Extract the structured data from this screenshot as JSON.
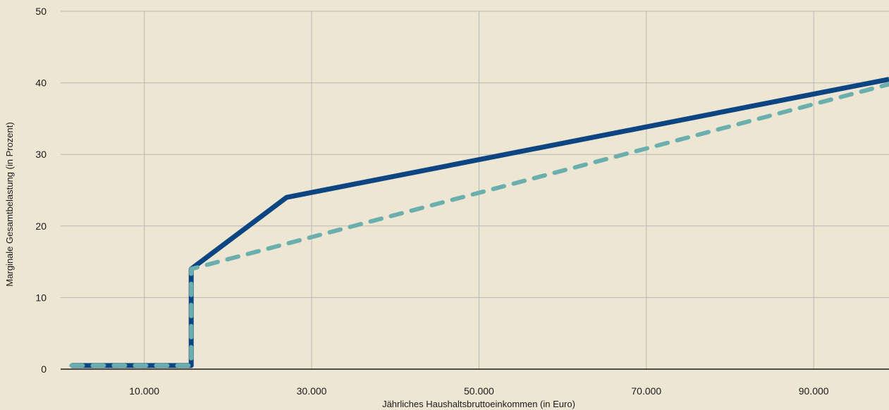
{
  "chart_data": {
    "type": "line",
    "title": "",
    "xlabel": "Jährliches Haushaltsbruttoeinkommen (in Euro)",
    "ylabel": "Marginale Gesamtbelastung (in Prozent)",
    "xlim": [
      0,
      99000
    ],
    "ylim": [
      0,
      50
    ],
    "x_ticks": [
      10000,
      30000,
      50000,
      70000,
      90000
    ],
    "x_tick_labels": [
      "10.000",
      "30.000",
      "50.000",
      "70.000",
      "90.000"
    ],
    "y_ticks": [
      0,
      10,
      20,
      30,
      40,
      50
    ],
    "y_tick_labels": [
      "0",
      "10",
      "20",
      "30",
      "40",
      "50"
    ],
    "grid": true,
    "legend": "none",
    "series": [
      {
        "color": "#0d4582",
        "style": "solid",
        "x": [
          1300,
          15600,
          15600,
          27000,
          99000
        ],
        "y": [
          0.5,
          0.5,
          14,
          24,
          40.5
        ]
      },
      {
        "color": "#6aafad",
        "style": "dashed",
        "x": [
          1300,
          15600,
          15600,
          99000
        ],
        "y": [
          0.5,
          0.5,
          14,
          39.8
        ]
      }
    ]
  }
}
